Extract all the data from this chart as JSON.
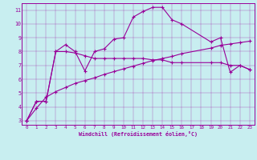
{
  "xlabel": "Windchill (Refroidissement éolien,°C)",
  "background_color": "#c8eef0",
  "line_color": "#990099",
  "xlim": [
    -0.5,
    23.5
  ],
  "ylim": [
    2.7,
    11.5
  ],
  "yticks": [
    3,
    4,
    5,
    6,
    7,
    8,
    9,
    10,
    11
  ],
  "xticks": [
    0,
    1,
    2,
    3,
    4,
    5,
    6,
    7,
    8,
    9,
    10,
    11,
    12,
    13,
    14,
    15,
    16,
    17,
    18,
    19,
    20,
    21,
    22,
    23
  ],
  "line1_x": [
    0,
    1,
    2,
    3,
    4,
    5,
    6,
    7,
    8,
    9,
    10,
    11,
    12,
    13,
    14,
    15,
    16,
    19,
    20,
    21,
    22,
    23
  ],
  "line1_y": [
    3.0,
    4.4,
    4.4,
    8.0,
    8.5,
    8.0,
    6.6,
    8.0,
    8.2,
    8.9,
    9.0,
    10.5,
    10.9,
    11.2,
    11.2,
    10.3,
    10.0,
    8.7,
    9.0,
    6.5,
    7.0,
    6.7
  ],
  "line2_x": [
    0,
    1,
    2,
    3,
    4,
    5,
    6,
    7,
    8,
    9,
    10,
    11,
    12,
    13,
    14,
    15,
    16,
    19,
    20,
    21,
    22,
    23
  ],
  "line2_y": [
    3.0,
    4.4,
    4.4,
    8.0,
    8.0,
    7.9,
    7.7,
    7.5,
    7.5,
    7.5,
    7.5,
    7.5,
    7.5,
    7.4,
    7.4,
    7.2,
    7.2,
    7.2,
    7.2,
    7.0,
    7.0,
    6.7
  ],
  "line3_x": [
    0,
    1,
    2,
    3,
    4,
    5,
    6,
    7,
    8,
    9,
    10,
    11,
    12,
    13,
    14,
    15,
    16,
    19,
    20,
    21,
    22,
    23
  ],
  "line3_y": [
    3.0,
    3.9,
    4.7,
    5.1,
    5.4,
    5.7,
    5.9,
    6.1,
    6.35,
    6.55,
    6.75,
    6.95,
    7.15,
    7.35,
    7.5,
    7.65,
    7.85,
    8.25,
    8.45,
    8.55,
    8.65,
    8.75
  ]
}
